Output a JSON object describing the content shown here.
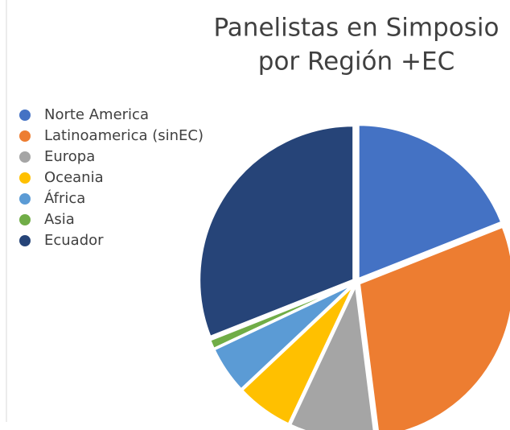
{
  "chart_data": {
    "type": "pie",
    "title": [
      "Panelistas en Simposio",
      "por Región +EC"
    ],
    "categories": [
      "Norte America",
      "Latinoamerica (sinEC)",
      "Europa",
      "Oceania",
      "África",
      "Asia",
      "Ecuador"
    ],
    "values": [
      19,
      29,
      9,
      6,
      5,
      1,
      31
    ],
    "colors": [
      "#4472c4",
      "#ed7d31",
      "#a5a5a5",
      "#ffc000",
      "#5b9bd5",
      "#70ad47",
      "#264478"
    ],
    "legend": "left"
  }
}
